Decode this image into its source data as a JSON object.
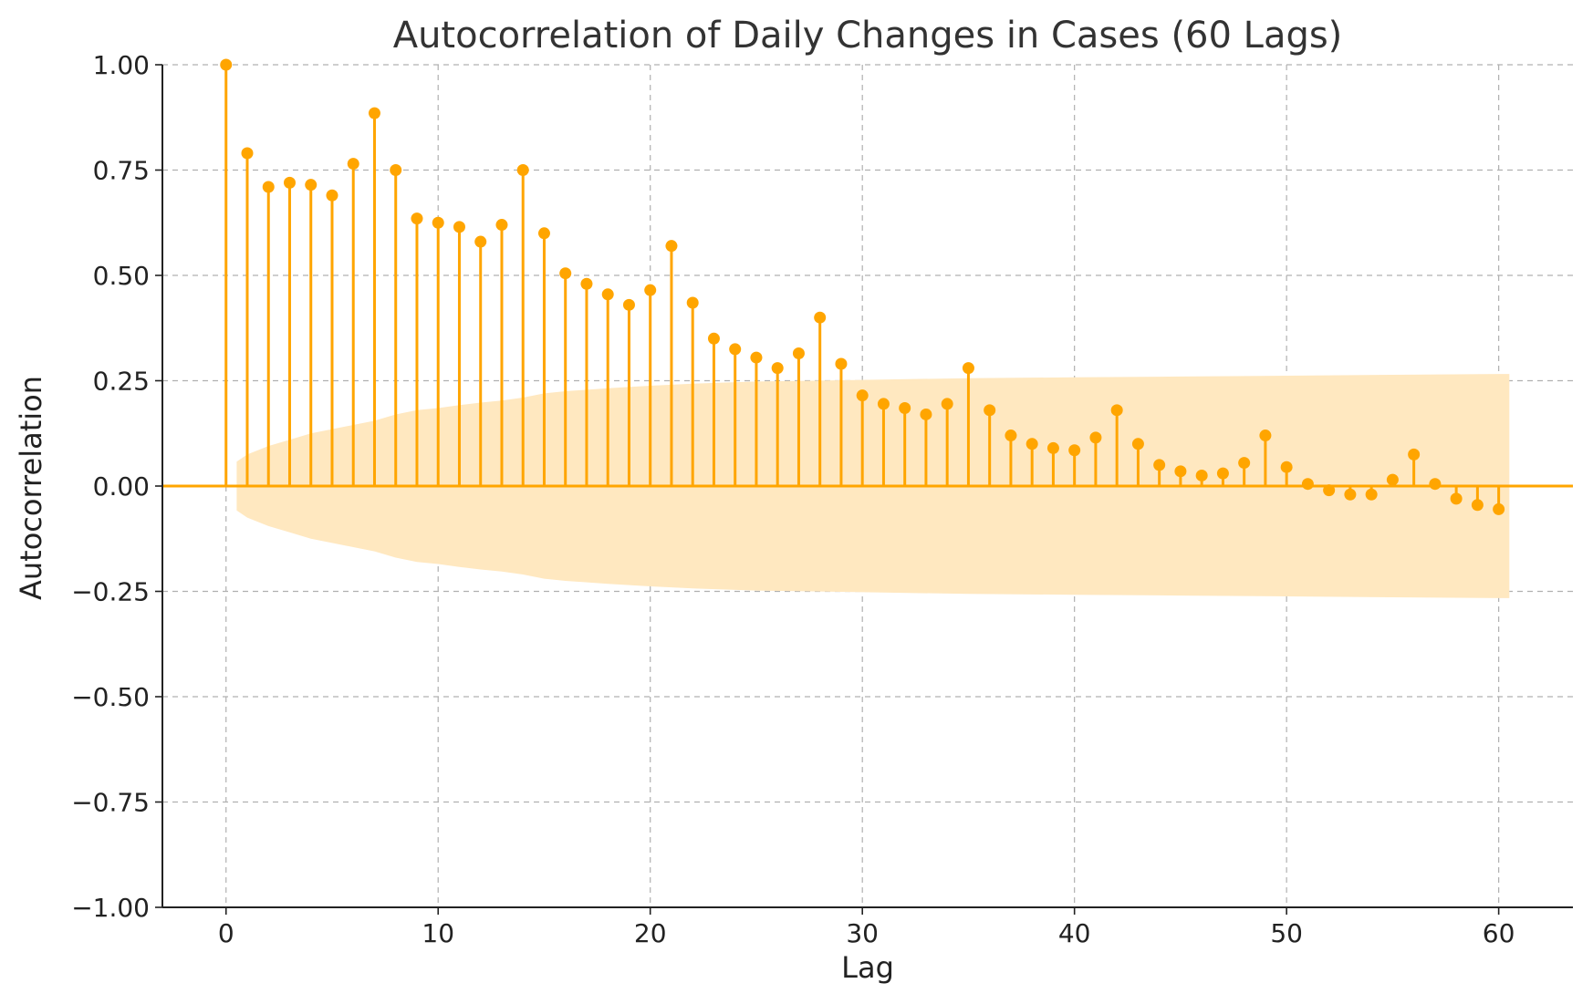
{
  "chart_data": {
    "type": "stem",
    "title": "Autocorrelation of Daily Changes in Cases (60 Lags)",
    "xlabel": "Lag",
    "ylabel": "Autocorrelation",
    "xlim": [
      -3,
      63.5
    ],
    "ylim": [
      -1.0,
      1.0
    ],
    "xticks": [
      0,
      10,
      20,
      30,
      40,
      50,
      60
    ],
    "xtick_labels": [
      "0",
      "10",
      "20",
      "30",
      "40",
      "50",
      "60"
    ],
    "yticks": [
      -1.0,
      -0.75,
      -0.5,
      -0.25,
      0.0,
      0.25,
      0.5,
      0.75,
      1.0
    ],
    "ytick_labels": [
      "−1.00",
      "−0.75",
      "−0.50",
      "−0.25",
      "0.00",
      "0.25",
      "0.50",
      "0.75",
      "1.00"
    ],
    "grid": true,
    "colors": {
      "stem": "#FFA500",
      "confidence_band": "#FFE8C0"
    },
    "lags": [
      0,
      1,
      2,
      3,
      4,
      5,
      6,
      7,
      8,
      9,
      10,
      11,
      12,
      13,
      14,
      15,
      16,
      17,
      18,
      19,
      20,
      21,
      22,
      23,
      24,
      25,
      26,
      27,
      28,
      29,
      30,
      31,
      32,
      33,
      34,
      35,
      36,
      37,
      38,
      39,
      40,
      41,
      42,
      43,
      44,
      45,
      46,
      47,
      48,
      49,
      50,
      51,
      52,
      53,
      54,
      55,
      56,
      57,
      58,
      59,
      60
    ],
    "values": [
      1.0,
      0.79,
      0.71,
      0.72,
      0.715,
      0.69,
      0.765,
      0.885,
      0.75,
      0.635,
      0.625,
      0.615,
      0.58,
      0.62,
      0.75,
      0.6,
      0.505,
      0.48,
      0.455,
      0.43,
      0.465,
      0.57,
      0.435,
      0.35,
      0.325,
      0.305,
      0.28,
      0.315,
      0.4,
      0.29,
      0.215,
      0.195,
      0.185,
      0.17,
      0.195,
      0.28,
      0.18,
      0.12,
      0.1,
      0.09,
      0.085,
      0.115,
      0.18,
      0.1,
      0.05,
      0.035,
      0.025,
      0.03,
      0.055,
      0.12,
      0.045,
      0.005,
      -0.01,
      -0.02,
      -0.02,
      0.015,
      0.075,
      0.005,
      -0.03,
      -0.045,
      -0.055
    ],
    "confidence_band": {
      "x": [
        0.5,
        1,
        2,
        3,
        4,
        5,
        6,
        7,
        8,
        9,
        10,
        11,
        12,
        13,
        14,
        15,
        16,
        18,
        20,
        22,
        25,
        30,
        35,
        40,
        45,
        50,
        55,
        60,
        60.5
      ],
      "upper": [
        0.058,
        0.075,
        0.095,
        0.11,
        0.125,
        0.135,
        0.145,
        0.155,
        0.17,
        0.18,
        0.185,
        0.192,
        0.198,
        0.203,
        0.21,
        0.22,
        0.225,
        0.232,
        0.238,
        0.243,
        0.248,
        0.252,
        0.256,
        0.258,
        0.26,
        0.262,
        0.264,
        0.266,
        0.266
      ]
    }
  }
}
